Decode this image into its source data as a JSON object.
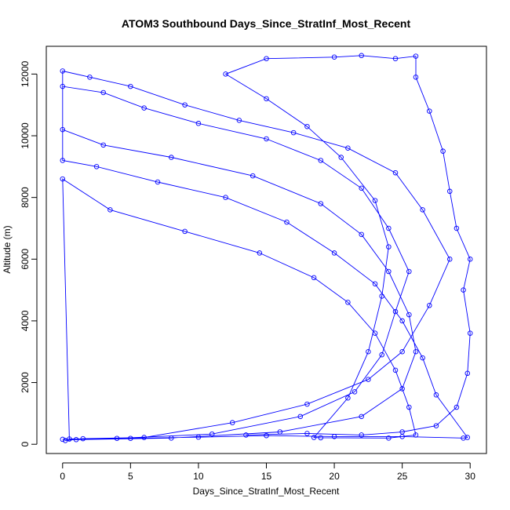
{
  "chart_data": {
    "type": "line",
    "title": "ATOM3 Southbound Days_Since_StratInf_Most_Recent",
    "xlabel": "Days_Since_StratInf_Most_Recent",
    "ylabel": "Altitude (m)",
    "xlim": [
      -1.2,
      31.2
    ],
    "ylim": [
      -300,
      12900
    ],
    "xticks": [
      0,
      5,
      10,
      15,
      20,
      25,
      30
    ],
    "yticks": [
      0,
      2000,
      4000,
      6000,
      8000,
      10000,
      12000
    ],
    "grid": false,
    "legend": "none",
    "marker": "open-circle",
    "series_color": "#0000ff",
    "series": [
      {
        "values": [
          [
            0.2,
            120
          ],
          [
            1.5,
            180
          ],
          [
            6.0,
            220
          ],
          [
            12.5,
            700
          ],
          [
            18.0,
            1300
          ],
          [
            22.5,
            2100
          ],
          [
            25.0,
            3000
          ],
          [
            27.0,
            4500
          ],
          [
            28.5,
            6000
          ],
          [
            26.5,
            7600
          ],
          [
            24.5,
            8800
          ],
          [
            21.0,
            9600
          ],
          [
            17.0,
            10100
          ],
          [
            13.0,
            10500
          ],
          [
            9.0,
            11000
          ],
          [
            5.0,
            11600
          ],
          [
            2.0,
            11900
          ],
          [
            0.0,
            12100
          ],
          [
            0.0,
            10200
          ],
          [
            3.0,
            9700
          ],
          [
            8.0,
            9300
          ],
          [
            14.0,
            8700
          ],
          [
            19.0,
            7800
          ],
          [
            22.0,
            6800
          ],
          [
            24.0,
            5600
          ],
          [
            25.5,
            4200
          ],
          [
            26.0,
            3000
          ],
          [
            25.0,
            1800
          ],
          [
            22.0,
            900
          ],
          [
            16.0,
            400
          ],
          [
            8.0,
            200
          ],
          [
            1.0,
            150
          ],
          [
            0.0,
            160
          ],
          [
            4.0,
            190
          ],
          [
            11.0,
            330
          ],
          [
            17.5,
            900
          ],
          [
            21.5,
            1700
          ],
          [
            23.5,
            2900
          ],
          [
            24.5,
            4300
          ],
          [
            25.5,
            5600
          ],
          [
            24.0,
            7000
          ],
          [
            22.0,
            8300
          ],
          [
            19.0,
            9200
          ],
          [
            15.0,
            9900
          ],
          [
            10.0,
            10400
          ],
          [
            6.0,
            10900
          ],
          [
            3.0,
            11400
          ],
          [
            0.0,
            11600
          ],
          [
            0.0,
            9200
          ],
          [
            2.5,
            9000
          ],
          [
            7.0,
            8500
          ],
          [
            12.0,
            8000
          ],
          [
            16.5,
            7200
          ],
          [
            20.0,
            6200
          ],
          [
            23.0,
            5200
          ],
          [
            25.0,
            4000
          ],
          [
            26.5,
            2800
          ],
          [
            27.5,
            1600
          ],
          [
            29.8,
            220
          ],
          [
            29.5,
            200
          ],
          [
            25.0,
            250
          ],
          [
            20.0,
            250
          ],
          [
            15.0,
            280
          ],
          [
            10.0,
            230
          ],
          [
            5.0,
            190
          ],
          [
            0.5,
            170
          ],
          [
            0.0,
            8600
          ],
          [
            3.5,
            7600
          ],
          [
            9.0,
            6900
          ],
          [
            14.5,
            6200
          ],
          [
            18.5,
            5400
          ],
          [
            21.0,
            4600
          ],
          [
            23.0,
            3600
          ],
          [
            24.5,
            2400
          ],
          [
            25.5,
            1200
          ],
          [
            26.0,
            300
          ],
          [
            24.0,
            200
          ],
          [
            19.0,
            210
          ],
          [
            18.5,
            220
          ],
          [
            21.0,
            1500
          ],
          [
            22.5,
            3000
          ],
          [
            23.5,
            4800
          ],
          [
            24.0,
            6400
          ],
          [
            23.0,
            7900
          ],
          [
            20.5,
            9300
          ],
          [
            18.0,
            10300
          ],
          [
            15.0,
            11200
          ],
          [
            12.0,
            12000
          ],
          [
            15.0,
            12500
          ],
          [
            20.0,
            12550
          ],
          [
            22.0,
            12600
          ],
          [
            24.5,
            12500
          ],
          [
            26.0,
            12580
          ],
          [
            26.0,
            11900
          ],
          [
            27.0,
            10800
          ],
          [
            28.0,
            9500
          ],
          [
            28.5,
            8200
          ],
          [
            29.0,
            7000
          ],
          [
            30.0,
            6000
          ],
          [
            29.5,
            5000
          ],
          [
            30.0,
            3600
          ],
          [
            29.8,
            2300
          ],
          [
            29.0,
            1200
          ],
          [
            27.5,
            600
          ],
          [
            25.0,
            400
          ],
          [
            22.0,
            300
          ],
          [
            18.0,
            350
          ],
          [
            13.5,
            300
          ]
        ]
      }
    ]
  }
}
